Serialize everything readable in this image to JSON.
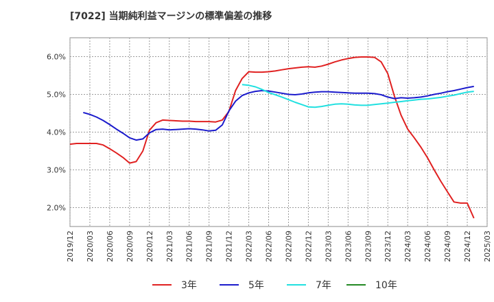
{
  "chart_data": {
    "type": "line",
    "title": "[7022]  当期純利益マージンの標準偏差の推移",
    "xlabel": "",
    "ylabel": "",
    "ylim": [
      1.5,
      6.5
    ],
    "yticks": [
      2.0,
      3.0,
      4.0,
      5.0,
      6.0
    ],
    "ytick_labels": [
      "2.0%",
      "3.0%",
      "4.0%",
      "5.0%",
      "6.0%"
    ],
    "xticks": [
      "2019/12",
      "2020/03",
      "2020/06",
      "2020/09",
      "2020/12",
      "2021/03",
      "2021/06",
      "2021/09",
      "2021/12",
      "2022/03",
      "2022/06",
      "2022/09",
      "2022/12",
      "2023/03",
      "2023/06",
      "2023/09",
      "2023/12",
      "2024/03",
      "2024/06",
      "2024/09",
      "2024/12",
      "2025/03"
    ],
    "grid": true,
    "legend_position": "bottom",
    "series": [
      {
        "name": "3年",
        "color": "#e02020",
        "start": "2019/12",
        "values": [
          3.68,
          3.7,
          3.7,
          3.7,
          3.7,
          3.66,
          3.56,
          3.45,
          3.33,
          3.18,
          3.22,
          3.5,
          4.05,
          4.25,
          4.32,
          4.31,
          4.3,
          4.29,
          4.29,
          4.28,
          4.28,
          4.28,
          4.27,
          4.32,
          4.55,
          5.1,
          5.42,
          5.6,
          5.59,
          5.59,
          5.6,
          5.62,
          5.65,
          5.68,
          5.7,
          5.72,
          5.73,
          5.72,
          5.75,
          5.8,
          5.86,
          5.91,
          5.95,
          5.98,
          5.99,
          5.99,
          5.98,
          5.86,
          5.55,
          4.95,
          4.45,
          4.08,
          3.85,
          3.6,
          3.32,
          3.0,
          2.7,
          2.42,
          2.15,
          2.12,
          2.12,
          1.72
        ]
      },
      {
        "name": "5年",
        "color": "#1a1acc",
        "start": "2020/02",
        "values": [
          4.52,
          4.47,
          4.4,
          4.31,
          4.2,
          4.08,
          3.97,
          3.85,
          3.79,
          3.82,
          3.98,
          4.07,
          4.08,
          4.06,
          4.07,
          4.08,
          4.09,
          4.08,
          4.06,
          4.03,
          4.05,
          4.19,
          4.56,
          4.82,
          4.97,
          5.04,
          5.08,
          5.1,
          5.09,
          5.06,
          5.03,
          5.0,
          4.99,
          5.01,
          5.04,
          5.06,
          5.07,
          5.07,
          5.06,
          5.05,
          5.04,
          5.03,
          5.03,
          5.03,
          5.02,
          4.99,
          4.93,
          4.89,
          4.91,
          4.9,
          4.91,
          4.93,
          4.96,
          5.0,
          5.03,
          5.07,
          5.1,
          5.14,
          5.18,
          5.21
        ]
      },
      {
        "name": "7年",
        "color": "#20e0e0",
        "start": "2022/02",
        "values": [
          5.26,
          5.24,
          5.2,
          5.13,
          5.05,
          4.99,
          4.93,
          4.86,
          4.79,
          4.73,
          4.67,
          4.66,
          4.68,
          4.71,
          4.74,
          4.75,
          4.74,
          4.72,
          4.71,
          4.71,
          4.73,
          4.75,
          4.77,
          4.79,
          4.81,
          4.83,
          4.85,
          4.87,
          4.88,
          4.9,
          4.92,
          4.95,
          4.98,
          5.02,
          5.06,
          5.08
        ]
      },
      {
        "name": "10年",
        "color": "#228822",
        "start": "2019/12",
        "values": []
      }
    ]
  }
}
